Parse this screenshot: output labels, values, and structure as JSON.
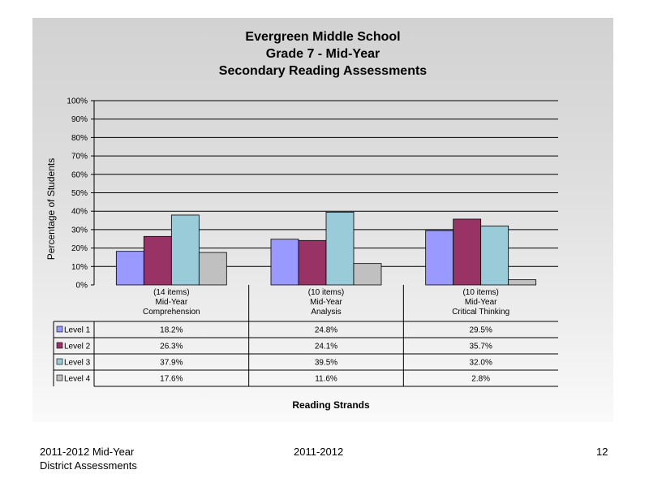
{
  "chart_data": {
    "type": "bar",
    "title": [
      "Evergreen Middle School",
      "Grade 7 - Mid-Year",
      "Secondary Reading Assessments"
    ],
    "ylabel": "Percentage of Students",
    "xlabel": "Reading Strands",
    "ylim": [
      0,
      100
    ],
    "yticks": [
      "0%",
      "10%",
      "20%",
      "30%",
      "40%",
      "50%",
      "60%",
      "70%",
      "80%",
      "90%",
      "100%"
    ],
    "grid": true,
    "legend": "data-table",
    "categories": [
      [
        "(14 items)",
        "Mid-Year",
        "Comprehension"
      ],
      [
        "(10 items)",
        "Mid-Year",
        "Analysis"
      ],
      [
        "(10 items)",
        "Mid-Year",
        "Critical Thinking"
      ]
    ],
    "series": [
      {
        "name": "Level 1",
        "color": "#9999ff",
        "values": [
          18.2,
          24.8,
          29.5
        ],
        "labels": [
          "18.2%",
          "24.8%",
          "29.5%"
        ]
      },
      {
        "name": "Level 2",
        "color": "#993366",
        "values": [
          26.3,
          24.1,
          35.7
        ],
        "labels": [
          "26.3%",
          "24.1%",
          "35.7%"
        ]
      },
      {
        "name": "Level 3",
        "color": "#99ccd8",
        "values": [
          37.9,
          39.5,
          32.0
        ],
        "labels": [
          "37.9%",
          "39.5%",
          "32.0%"
        ]
      },
      {
        "name": "Level 4",
        "color": "#c0c0c0",
        "values": [
          17.6,
          11.6,
          2.8
        ],
        "labels": [
          "17.6%",
          "11.6%",
          "2.8%"
        ]
      }
    ]
  },
  "footer": {
    "left_line1": "2011-2012  Mid-Year",
    "left_line2": "District Assessments",
    "center": "2011-2012",
    "page_number": "12"
  }
}
